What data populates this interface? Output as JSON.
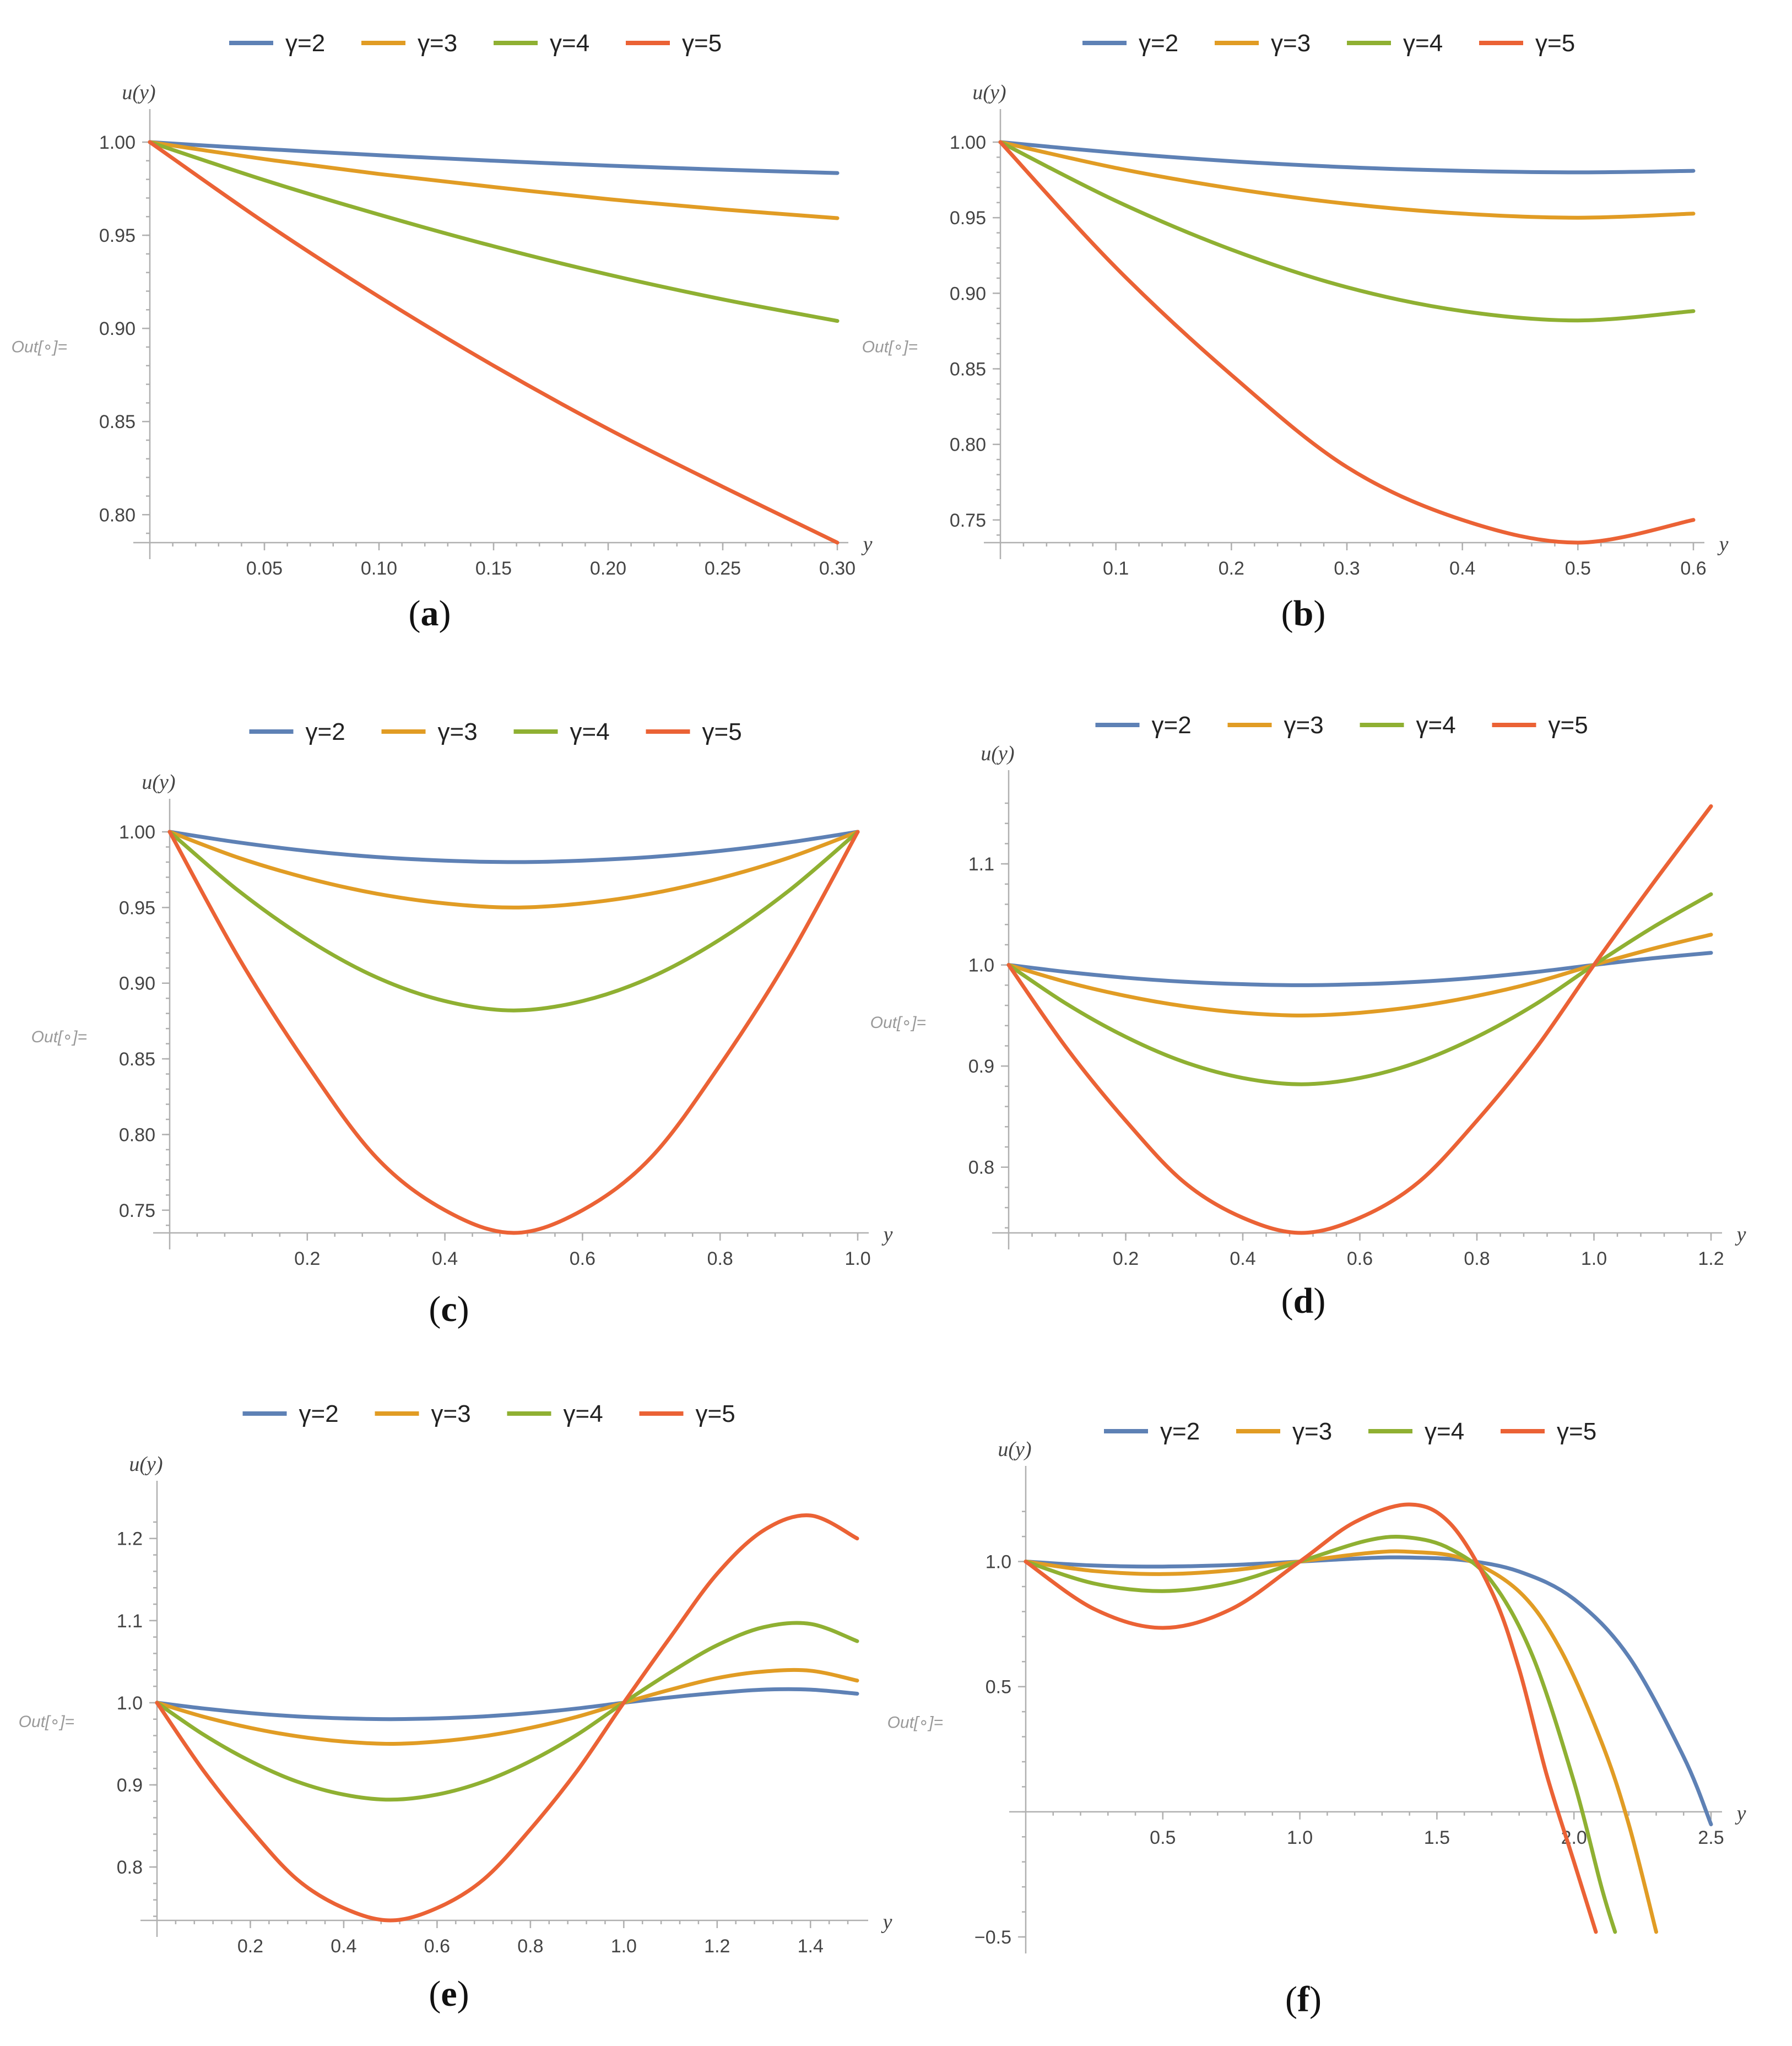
{
  "out_label": "Out[∘]=",
  "chart_data": [
    {
      "type": "line",
      "caption": "(a)",
      "xlabel": "y",
      "ylabel": "u(y)",
      "xlim": [
        0,
        0.3
      ],
      "ylim": [
        0.785,
        1.0
      ],
      "xticks": [
        0.05,
        0.1,
        0.15,
        0.2,
        0.25,
        0.3
      ],
      "xtick_labels": [
        "0.05",
        "0.10",
        "0.15",
        "0.20",
        "0.25",
        "0.30"
      ],
      "yticks": [
        0.8,
        0.85,
        0.9,
        0.95,
        1.0
      ],
      "ytick_labels": [
        "0.80",
        "0.85",
        "0.90",
        "0.95",
        "1.00"
      ],
      "legend": "top",
      "series": [
        {
          "name": "γ=2",
          "color": "#5E81B5",
          "x": [
            0,
            0.05,
            0.1,
            0.15,
            0.2,
            0.25,
            0.3
          ],
          "y": [
            1.0,
            0.9963,
            0.993,
            0.99,
            0.9874,
            0.9852,
            0.9834
          ]
        },
        {
          "name": "γ=3",
          "color": "#E19C24",
          "x": [
            0,
            0.05,
            0.1,
            0.15,
            0.2,
            0.25,
            0.3
          ],
          "y": [
            1.0,
            0.9909,
            0.9829,
            0.9759,
            0.9694,
            0.9639,
            0.9592
          ]
        },
        {
          "name": "γ=4",
          "color": "#8FB032",
          "x": [
            0,
            0.05,
            0.1,
            0.15,
            0.2,
            0.25,
            0.3
          ],
          "y": [
            1.0,
            0.9796,
            0.9611,
            0.9441,
            0.9289,
            0.9156,
            0.904
          ]
        },
        {
          "name": "γ=5",
          "color": "#EB6235",
          "x": [
            0,
            0.05,
            0.1,
            0.15,
            0.2,
            0.25,
            0.3
          ],
          "y": [
            1.0,
            0.9569,
            0.917,
            0.88,
            0.846,
            0.815,
            0.785
          ]
        }
      ]
    },
    {
      "type": "line",
      "caption": "(b)",
      "xlabel": "y",
      "ylabel": "u(y)",
      "xlim": [
        0,
        0.6
      ],
      "ylim": [
        0.735,
        1.0
      ],
      "xticks": [
        0.1,
        0.2,
        0.3,
        0.4,
        0.5,
        0.6
      ],
      "xtick_labels": [
        "0.1",
        "0.2",
        "0.3",
        "0.4",
        "0.5",
        "0.6"
      ],
      "yticks": [
        0.75,
        0.8,
        0.85,
        0.9,
        0.95,
        1.0
      ],
      "ytick_labels": [
        "0.75",
        "0.80",
        "0.85",
        "0.90",
        "0.95",
        "1.00"
      ],
      "legend": "top",
      "series": [
        {
          "name": "γ=2",
          "color": "#5E81B5",
          "x": [
            0,
            0.1,
            0.2,
            0.3,
            0.4,
            0.5,
            0.6
          ],
          "y": [
            1.0,
            0.993,
            0.9874,
            0.9834,
            0.981,
            0.98,
            0.981
          ]
        },
        {
          "name": "γ=3",
          "color": "#E19C24",
          "x": [
            0,
            0.1,
            0.2,
            0.3,
            0.4,
            0.5,
            0.6
          ],
          "y": [
            1.0,
            0.9829,
            0.9694,
            0.9592,
            0.9527,
            0.95,
            0.9527
          ]
        },
        {
          "name": "γ=4",
          "color": "#8FB032",
          "x": [
            0,
            0.1,
            0.2,
            0.3,
            0.4,
            0.5,
            0.6
          ],
          "y": [
            1.0,
            0.9611,
            0.9289,
            0.904,
            0.8882,
            0.882,
            0.8882
          ]
        },
        {
          "name": "γ=5",
          "color": "#EB6235",
          "x": [
            0,
            0.1,
            0.2,
            0.3,
            0.4,
            0.5,
            0.6
          ],
          "y": [
            1.0,
            0.917,
            0.846,
            0.785,
            0.75,
            0.735,
            0.75
          ]
        }
      ]
    },
    {
      "type": "line",
      "caption": "(c)",
      "xlabel": "y",
      "ylabel": "u(y)",
      "xlim": [
        0,
        1.0
      ],
      "ylim": [
        0.735,
        1.0
      ],
      "xticks": [
        0.2,
        0.4,
        0.6,
        0.8,
        1.0
      ],
      "xtick_labels": [
        "0.2",
        "0.4",
        "0.6",
        "0.8",
        "1.0"
      ],
      "yticks": [
        0.75,
        0.8,
        0.85,
        0.9,
        0.95,
        1.0
      ],
      "ytick_labels": [
        "0.75",
        "0.80",
        "0.85",
        "0.90",
        "0.95",
        "1.00"
      ],
      "legend": "top",
      "series": [
        {
          "name": "γ=2",
          "color": "#5E81B5",
          "x": [
            0,
            0.1,
            0.2,
            0.3,
            0.4,
            0.5,
            0.6,
            0.7,
            0.8,
            0.9,
            1.0
          ],
          "y": [
            1.0,
            0.993,
            0.9874,
            0.9834,
            0.981,
            0.98,
            0.981,
            0.9834,
            0.9874,
            0.993,
            1.0
          ]
        },
        {
          "name": "γ=3",
          "color": "#E19C24",
          "x": [
            0,
            0.1,
            0.2,
            0.3,
            0.4,
            0.5,
            0.6,
            0.7,
            0.8,
            0.9,
            1.0
          ],
          "y": [
            1.0,
            0.9829,
            0.9694,
            0.9592,
            0.9527,
            0.95,
            0.9527,
            0.9592,
            0.9694,
            0.9829,
            1.0
          ]
        },
        {
          "name": "γ=4",
          "color": "#8FB032",
          "x": [
            0,
            0.1,
            0.2,
            0.3,
            0.4,
            0.5,
            0.6,
            0.7,
            0.8,
            0.9,
            1.0
          ],
          "y": [
            1.0,
            0.9611,
            0.9289,
            0.904,
            0.8882,
            0.882,
            0.8882,
            0.904,
            0.9289,
            0.9611,
            1.0
          ]
        },
        {
          "name": "γ=5",
          "color": "#EB6235",
          "x": [
            0,
            0.1,
            0.2,
            0.3,
            0.4,
            0.5,
            0.6,
            0.7,
            0.8,
            0.9,
            1.0
          ],
          "y": [
            1.0,
            0.917,
            0.846,
            0.785,
            0.75,
            0.735,
            0.75,
            0.785,
            0.846,
            0.917,
            1.0
          ]
        }
      ]
    },
    {
      "type": "line",
      "caption": "(d)",
      "xlabel": "y",
      "ylabel": "u(y)",
      "xlim": [
        0,
        1.2
      ],
      "ylim": [
        0.735,
        1.16
      ],
      "xticks": [
        0.2,
        0.4,
        0.6,
        0.8,
        1.0,
        1.2
      ],
      "xtick_labels": [
        "0.2",
        "0.4",
        "0.6",
        "0.8",
        "1.0",
        "1.2"
      ],
      "yticks": [
        0.8,
        0.9,
        1.0,
        1.1
      ],
      "ytick_labels": [
        "0.8",
        "0.9",
        "1.0",
        "1.1"
      ],
      "legend": "top",
      "series": [
        {
          "name": "γ=2",
          "color": "#5E81B5",
          "x": [
            0,
            0.1,
            0.2,
            0.3,
            0.4,
            0.5,
            0.6,
            0.7,
            0.8,
            0.9,
            1.0,
            1.1,
            1.2
          ],
          "y": [
            1.0,
            0.993,
            0.9874,
            0.9834,
            0.981,
            0.98,
            0.981,
            0.9834,
            0.9874,
            0.993,
            1.0,
            1.0066,
            1.012
          ]
        },
        {
          "name": "γ=3",
          "color": "#E19C24",
          "x": [
            0,
            0.1,
            0.2,
            0.3,
            0.4,
            0.5,
            0.6,
            0.7,
            0.8,
            0.9,
            1.0,
            1.1,
            1.2
          ],
          "y": [
            1.0,
            0.9829,
            0.9694,
            0.9592,
            0.9527,
            0.95,
            0.9527,
            0.9592,
            0.9694,
            0.9829,
            1.0,
            1.016,
            1.03
          ]
        },
        {
          "name": "γ=4",
          "color": "#8FB032",
          "x": [
            0,
            0.1,
            0.2,
            0.3,
            0.4,
            0.5,
            0.6,
            0.7,
            0.8,
            0.9,
            1.0,
            1.1,
            1.2
          ],
          "y": [
            1.0,
            0.9611,
            0.9289,
            0.904,
            0.8882,
            0.882,
            0.8882,
            0.904,
            0.9289,
            0.9611,
            1.0,
            1.037,
            1.07
          ]
        },
        {
          "name": "γ=5",
          "color": "#EB6235",
          "x": [
            0,
            0.1,
            0.2,
            0.3,
            0.4,
            0.5,
            0.6,
            0.7,
            0.8,
            0.9,
            1.0,
            1.1,
            1.2
          ],
          "y": [
            1.0,
            0.917,
            0.846,
            0.785,
            0.75,
            0.735,
            0.75,
            0.785,
            0.846,
            0.917,
            1.0,
            1.08,
            1.157
          ]
        }
      ]
    },
    {
      "type": "line",
      "caption": "(e)",
      "xlabel": "y",
      "ylabel": "u(y)",
      "xlim": [
        0,
        1.5
      ],
      "ylim": [
        0.735,
        1.23
      ],
      "xticks": [
        0.2,
        0.4,
        0.6,
        0.8,
        1.0,
        1.2,
        1.4
      ],
      "xtick_labels": [
        "0.2",
        "0.4",
        "0.6",
        "0.8",
        "1.0",
        "1.2",
        "1.4"
      ],
      "yticks": [
        0.8,
        0.9,
        1.0,
        1.1,
        1.2
      ],
      "ytick_labels": [
        "0.8",
        "0.9",
        "1.0",
        "1.1",
        "1.2"
      ],
      "legend": "top",
      "series": [
        {
          "name": "γ=2",
          "color": "#5E81B5",
          "x": [
            0,
            0.1,
            0.2,
            0.3,
            0.4,
            0.5,
            0.6,
            0.7,
            0.8,
            0.9,
            1.0,
            1.1,
            1.2,
            1.3,
            1.4,
            1.5
          ],
          "y": [
            1.0,
            0.993,
            0.9874,
            0.9834,
            0.981,
            0.98,
            0.981,
            0.9834,
            0.9874,
            0.993,
            1.0,
            1.0066,
            1.012,
            1.016,
            1.016,
            1.011
          ]
        },
        {
          "name": "γ=3",
          "color": "#E19C24",
          "x": [
            0,
            0.1,
            0.2,
            0.3,
            0.4,
            0.5,
            0.6,
            0.7,
            0.8,
            0.9,
            1.0,
            1.1,
            1.2,
            1.3,
            1.4,
            1.5
          ],
          "y": [
            1.0,
            0.9829,
            0.9694,
            0.9592,
            0.9527,
            0.95,
            0.9527,
            0.9592,
            0.9694,
            0.9829,
            1.0,
            1.016,
            1.03,
            1.038,
            1.039,
            1.027
          ]
        },
        {
          "name": "γ=4",
          "color": "#8FB032",
          "x": [
            0,
            0.1,
            0.2,
            0.3,
            0.4,
            0.5,
            0.6,
            0.7,
            0.8,
            0.9,
            1.0,
            1.1,
            1.2,
            1.3,
            1.4,
            1.5
          ],
          "y": [
            1.0,
            0.9611,
            0.9289,
            0.904,
            0.8882,
            0.882,
            0.8882,
            0.904,
            0.9289,
            0.9611,
            1.0,
            1.037,
            1.07,
            1.092,
            1.096,
            1.075
          ]
        },
        {
          "name": "γ=5",
          "color": "#EB6235",
          "x": [
            0,
            0.1,
            0.2,
            0.3,
            0.4,
            0.5,
            0.6,
            0.7,
            0.8,
            0.9,
            1.0,
            1.1,
            1.2,
            1.3,
            1.4,
            1.5
          ],
          "y": [
            1.0,
            0.917,
            0.846,
            0.785,
            0.75,
            0.735,
            0.75,
            0.785,
            0.846,
            0.917,
            1.0,
            1.08,
            1.157,
            1.21,
            1.228,
            1.2
          ]
        }
      ]
    },
    {
      "type": "line",
      "caption": "(f)",
      "xlabel": "y",
      "ylabel": "u(y)",
      "xlim": [
        0,
        2.5
      ],
      "ylim": [
        -0.5,
        1.25
      ],
      "xticks": [
        0.5,
        1.0,
        1.5,
        2.0,
        2.5
      ],
      "xtick_labels": [
        "0.5",
        "1.0",
        "1.5",
        "2.0",
        "2.5"
      ],
      "yticks": [
        -0.5,
        0.5,
        1.0
      ],
      "ytick_labels": [
        "−0.5",
        "0.5",
        "1.0"
      ],
      "legend": "top",
      "series": [
        {
          "name": "γ=2",
          "color": "#5E81B5",
          "x": [
            0,
            0.25,
            0.5,
            0.75,
            1.0,
            1.25,
            1.4,
            1.6,
            1.8,
            2.0,
            2.2,
            2.4,
            2.5
          ],
          "y": [
            1.0,
            0.984,
            0.98,
            0.986,
            1.0,
            1.014,
            1.016,
            1.005,
            0.96,
            0.85,
            0.62,
            0.22,
            -0.05
          ]
        },
        {
          "name": "γ=3",
          "color": "#E19C24",
          "x": [
            0,
            0.25,
            0.5,
            0.75,
            1.0,
            1.25,
            1.4,
            1.6,
            1.8,
            1.95,
            2.1,
            2.2,
            2.3
          ],
          "y": [
            1.0,
            0.962,
            0.95,
            0.965,
            1.0,
            1.034,
            1.039,
            1.01,
            0.88,
            0.65,
            0.28,
            -0.05,
            -0.48
          ]
        },
        {
          "name": "γ=4",
          "color": "#8FB032",
          "x": [
            0,
            0.25,
            0.5,
            0.75,
            1.0,
            1.25,
            1.4,
            1.55,
            1.7,
            1.85,
            2.0,
            2.1,
            2.15
          ],
          "y": [
            1.0,
            0.912,
            0.882,
            0.915,
            1.0,
            1.085,
            1.096,
            1.05,
            0.92,
            0.62,
            0.12,
            -0.3,
            -0.48
          ]
        },
        {
          "name": "γ=5",
          "color": "#EB6235",
          "x": [
            0,
            0.25,
            0.5,
            0.75,
            1.0,
            1.2,
            1.4,
            1.55,
            1.7,
            1.8,
            1.9,
            2.0,
            2.08
          ],
          "y": [
            1.0,
            0.81,
            0.735,
            0.81,
            1.0,
            1.157,
            1.228,
            1.15,
            0.88,
            0.57,
            0.15,
            -0.2,
            -0.48
          ]
        }
      ]
    }
  ]
}
